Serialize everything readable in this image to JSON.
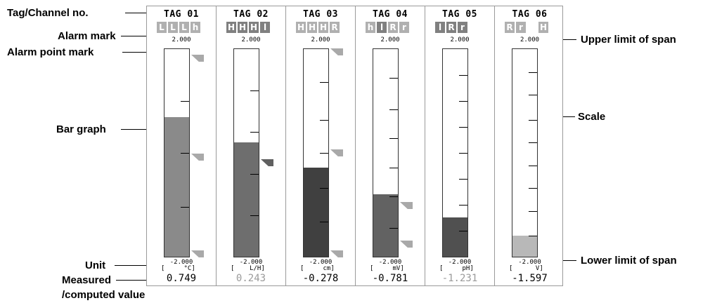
{
  "callouts": {
    "tag_channel": "Tag/Channel no.",
    "alarm_mark": "Alarm mark",
    "alarm_point_mark": "Alarm point mark",
    "bar_graph": "Bar graph",
    "unit": "Unit",
    "measured_line1": "Measured",
    "measured_line2": "/computed value",
    "upper_limit": "Upper limit of span",
    "scale": "Scale",
    "lower_limit": "Lower limit of span"
  },
  "channels": [
    {
      "tag": "TAG 01",
      "marks": [
        {
          "c": "L",
          "color": "#b0b0b0"
        },
        {
          "c": "L",
          "color": "#b0b0b0"
        },
        {
          "c": "L",
          "color": "#b0b0b0"
        },
        {
          "c": "h",
          "color": "#b0b0b0"
        }
      ],
      "upper": "2.000",
      "lower": "-2.000",
      "unit": "[     °C]",
      "value": "0.749",
      "value_color": "#000000",
      "fill_fraction": 0.673,
      "bar_color": "#8a8a8a",
      "scale_fractions": [
        0.24,
        0.5,
        0.75
      ],
      "alarm_points": [
        {
          "f": 0.97,
          "active": false
        },
        {
          "f": 0.48,
          "active": false
        },
        {
          "f": 0.0,
          "active": false
        }
      ]
    },
    {
      "tag": "TAG 02",
      "marks": [
        {
          "c": "H",
          "color": "#808080"
        },
        {
          "c": "H",
          "color": "#808080"
        },
        {
          "c": "H",
          "color": "#808080"
        },
        {
          "c": "l",
          "color": "#808080"
        }
      ],
      "upper": "2.000",
      "lower": "-2.000",
      "unit": "[    L/H]",
      "value": "0.243",
      "value_color": "#9a9a9a",
      "fill_fraction": 0.55,
      "bar_color": "#6e6e6e",
      "scale_fractions": [
        0.2,
        0.4,
        0.6,
        0.8
      ],
      "alarm_points": [
        {
          "f": 0.45,
          "active": true
        }
      ]
    },
    {
      "tag": "TAG 03",
      "marks": [
        {
          "c": "H",
          "color": "#b0b0b0"
        },
        {
          "c": "H",
          "color": "#b0b0b0"
        },
        {
          "c": "H",
          "color": "#b0b0b0"
        },
        {
          "c": "R",
          "color": "#b0b0b0"
        }
      ],
      "upper": "2.000",
      "lower": "-2.000",
      "unit": "[     cm]",
      "value": "-0.278",
      "value_color": "#000000",
      "fill_fraction": 0.43,
      "bar_color": "#404040",
      "scale_fractions": [
        0.17,
        0.33,
        0.5,
        0.66,
        0.84
      ],
      "alarm_points": [
        {
          "f": 1.0,
          "active": false
        },
        {
          "f": 0.5,
          "active": false
        },
        {
          "f": 0.0,
          "active": false
        }
      ]
    },
    {
      "tag": "TAG 04",
      "marks": [
        {
          "c": "h",
          "color": "#b0b0b0"
        },
        {
          "c": "l",
          "color": "#808080"
        },
        {
          "c": "R",
          "color": "#b0b0b0"
        },
        {
          "c": "r",
          "color": "#b0b0b0"
        }
      ],
      "upper": "2.000",
      "lower": "-2.000",
      "unit": "[     mV]",
      "value": "-0.781",
      "value_color": "#000000",
      "fill_fraction": 0.3,
      "bar_color": "#626262",
      "scale_fractions": [
        0.14,
        0.29,
        0.43,
        0.57,
        0.71,
        0.86
      ],
      "alarm_points": [
        {
          "f": 0.24,
          "active": false
        },
        {
          "f": 0.05,
          "active": false
        }
      ]
    },
    {
      "tag": "TAG 05",
      "marks": [
        {
          "c": "l",
          "color": "#808080"
        },
        {
          "c": "R",
          "color": "#808080"
        },
        {
          "c": "r",
          "color": "#808080"
        }
      ],
      "upper": "2.000",
      "lower": "-2.000",
      "unit": "[     pH]",
      "value": "-1.231",
      "value_color": "#9a9a9a",
      "fill_fraction": 0.19,
      "bar_color": "#505050",
      "scale_fractions": [
        0.125,
        0.25,
        0.375,
        0.5,
        0.625,
        0.75,
        0.875
      ],
      "alarm_points": []
    },
    {
      "tag": "TAG 06",
      "marks": [
        {
          "c": "R",
          "color": "#b0b0b0"
        },
        {
          "c": "r",
          "color": "#b0b0b0"
        },
        {
          "c": "",
          "color": "transparent"
        },
        {
          "c": "H",
          "color": "#b0b0b0"
        }
      ],
      "upper": "2.000",
      "lower": "-2.000",
      "unit": "[      V]",
      "value": "-1.597",
      "value_color": "#000000",
      "fill_fraction": 0.1,
      "bar_color": "#b8b8b8",
      "scale_fractions": [
        0.1,
        0.22,
        0.33,
        0.44,
        0.55,
        0.66,
        0.78,
        0.89
      ],
      "alarm_points": []
    }
  ]
}
